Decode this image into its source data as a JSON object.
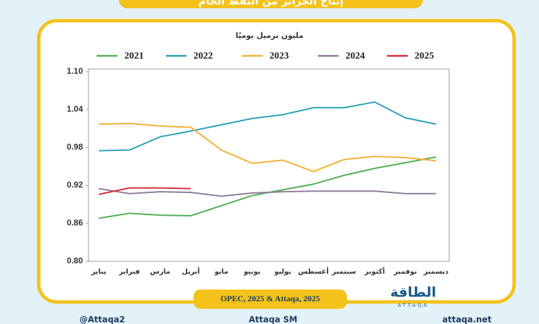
{
  "chart_data": {
    "type": "line",
    "title": "إنتاج الجزائر من النفط الخام",
    "subtitle": "مليون برميل يوميًا",
    "source": "OPEC, 2025 & Attaqa, 2025",
    "logo": "الطاقة",
    "logo_sub": "ATTAQA",
    "footer": [
      "@Attaqa2",
      "Attaqa SM",
      "attaqa.net"
    ],
    "categories": [
      "يناير",
      "فبراير",
      "مارس",
      "أبريل",
      "مايو",
      "يونيو",
      "يوليو",
      "أغسطس",
      "سبتمبر",
      "أكتوبر",
      "نوفمبر",
      "ديسمبر"
    ],
    "series": [
      {
        "name": "2021",
        "color": "#4caf50",
        "values": [
          0.868,
          0.876,
          0.873,
          0.872,
          0.888,
          0.904,
          0.913,
          0.922,
          0.936,
          0.947,
          0.956,
          0.965
        ]
      },
      {
        "name": "2022",
        "color": "#2aa0b5",
        "values": [
          0.975,
          0.976,
          0.997,
          1.006,
          1.016,
          1.026,
          1.032,
          1.043,
          1.043,
          1.052,
          1.027,
          1.017
        ]
      },
      {
        "name": "2023",
        "color": "#f2b134",
        "values": [
          1.017,
          1.018,
          1.014,
          1.012,
          0.976,
          0.955,
          0.96,
          0.942,
          0.961,
          0.966,
          0.964,
          0.959
        ]
      },
      {
        "name": "2024",
        "color": "#8e7a9b",
        "values": [
          0.915,
          0.907,
          0.91,
          0.909,
          0.903,
          0.908,
          0.91,
          0.911,
          0.911,
          0.911,
          0.907,
          0.907
        ]
      },
      {
        "name": "2025",
        "color": "#d62d36",
        "values": [
          0.906,
          0.916,
          0.916,
          0.915,
          null,
          null,
          null,
          null,
          null,
          null,
          null,
          null
        ]
      }
    ],
    "ylim": [
      0.8,
      1.1
    ],
    "yticks": [
      {
        "value": 0.8,
        "label": "0.80"
      },
      0.86,
      0.92,
      0.98,
      1.04,
      {
        "value": 1.1,
        "label": "1.10"
      }
    ],
    "grid": false,
    "legend": "top"
  }
}
